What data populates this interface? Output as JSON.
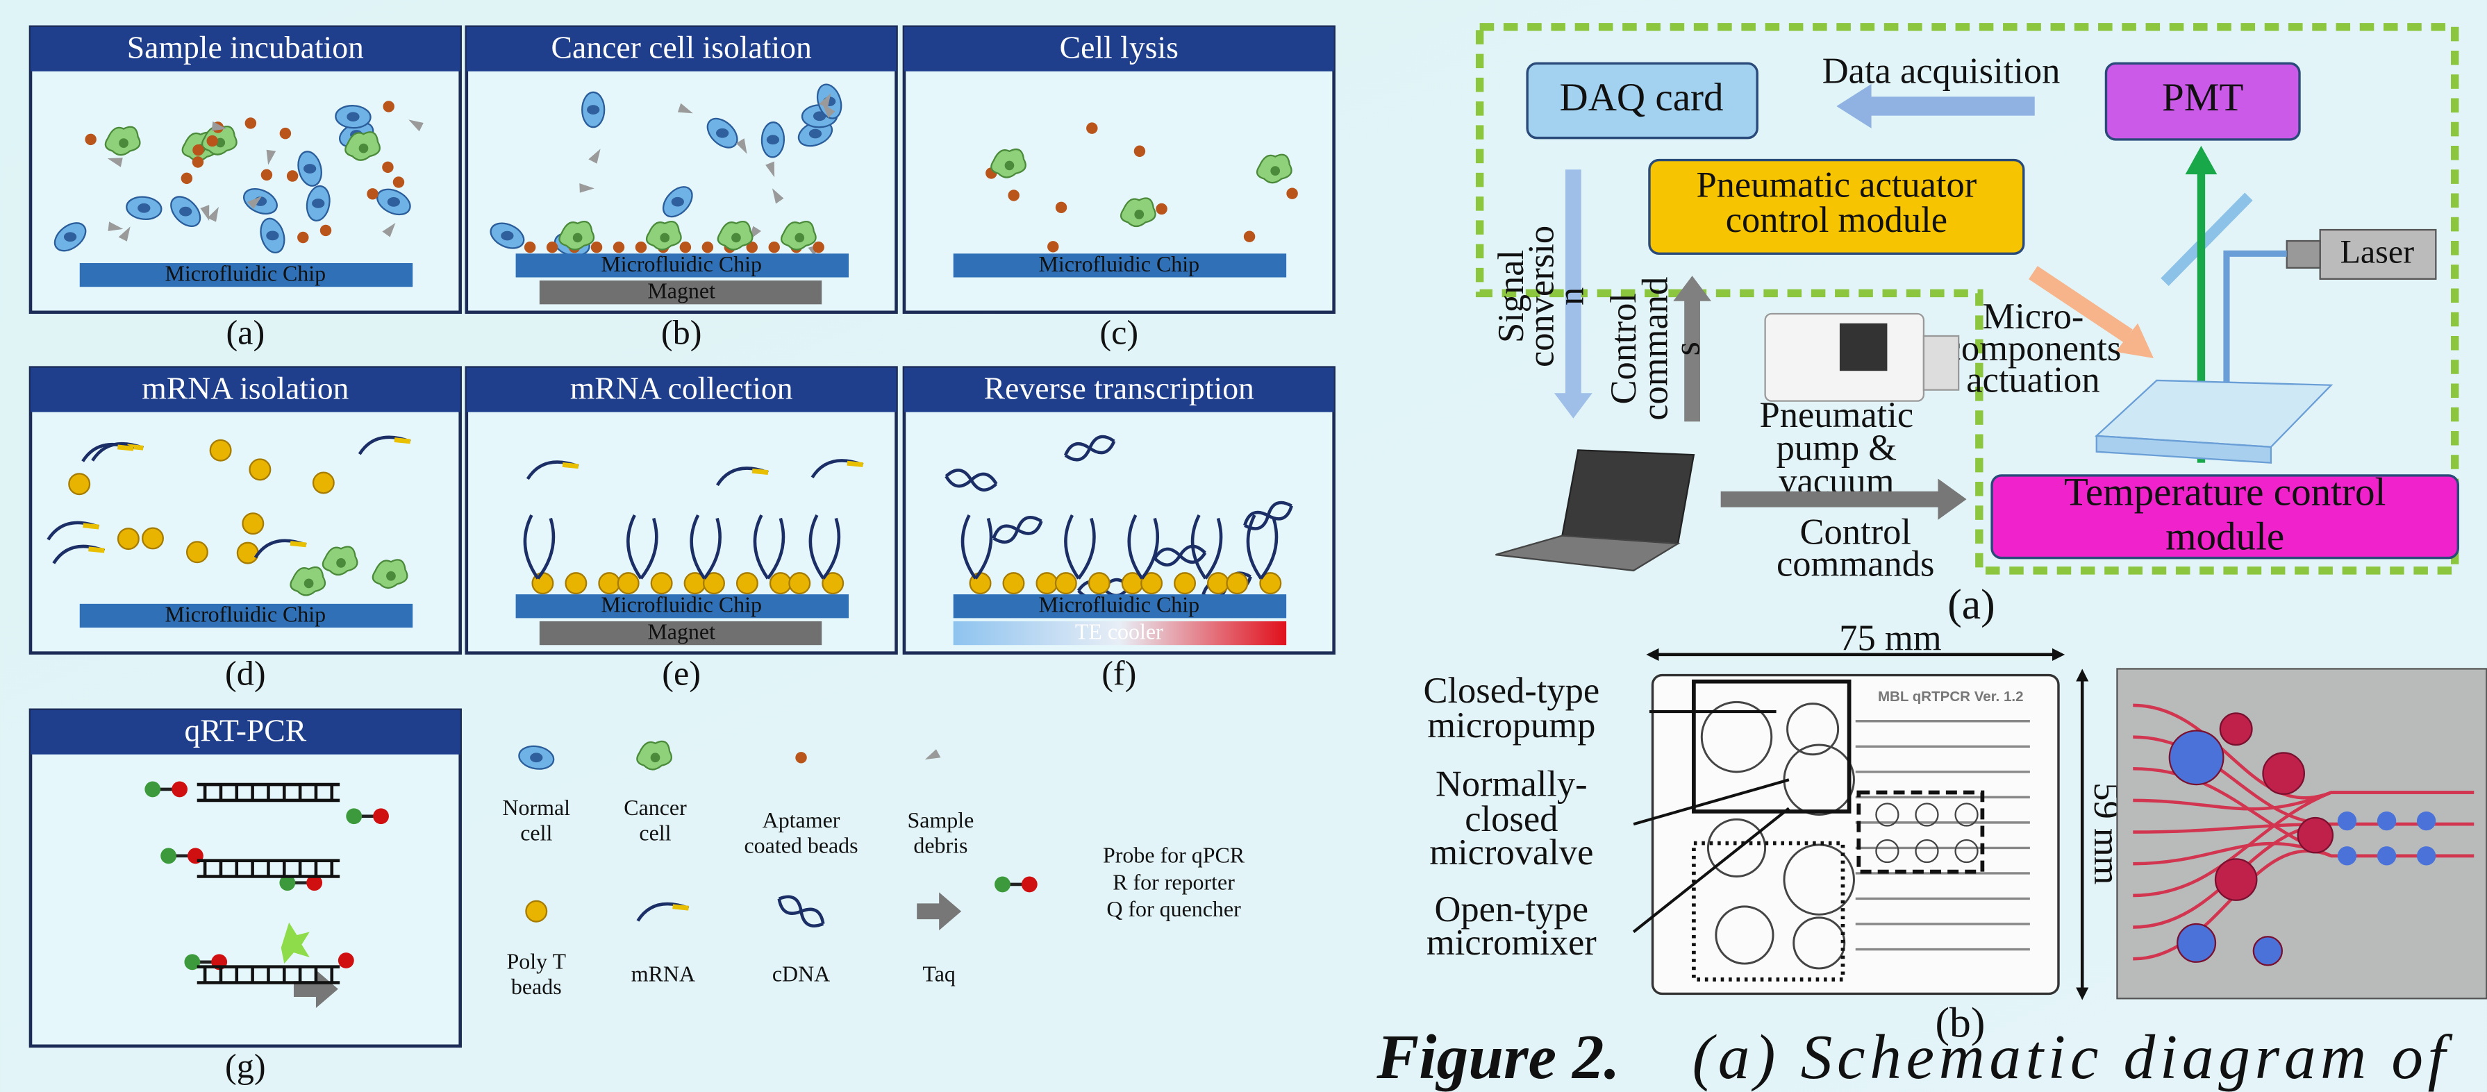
{
  "panels": [
    {
      "title": "Sample incubation",
      "chip": "Microfluidic Chip",
      "label": "(a)"
    },
    {
      "title": "Cancer cell isolation",
      "chip": "Microfluidic Chip",
      "base": "Magnet",
      "label": "(b)"
    },
    {
      "title": "Cell lysis",
      "chip": "Microfluidic Chip",
      "label": "(c)"
    },
    {
      "title": "mRNA isolation",
      "chip": "Microfluidic Chip",
      "label": "(d)"
    },
    {
      "title": "mRNA collection",
      "chip": "Microfluidic Chip",
      "base": "Magnet",
      "label": "(e)"
    },
    {
      "title": "Reverse transcription",
      "chip": "Microfluidic Chip",
      "base": "TE cooler",
      "label": "(f)"
    },
    {
      "title": "qRT-PCR",
      "label": "(g)"
    }
  ],
  "legend": [
    {
      "lines": [
        "Normal",
        "cell"
      ]
    },
    {
      "lines": [
        "Cancer",
        "cell"
      ]
    },
    {
      "lines": [
        "Aptamer",
        "coated beads"
      ]
    },
    {
      "lines": [
        "Sample",
        "debris"
      ]
    },
    {
      "lines": [
        "Poly T",
        "beads"
      ]
    },
    {
      "lines": [
        "mRNA"
      ]
    },
    {
      "lines": [
        "cDNA"
      ]
    },
    {
      "lines": [
        "Taq"
      ]
    }
  ],
  "probe_note": [
    "Probe for qPCR",
    "R for reporter",
    "Q for quencher"
  ],
  "system": {
    "daq": "DAQ card",
    "data_acquisition": "Data acquisition",
    "pmt": "PMT",
    "actuator": [
      "Pneumatic actuator",
      "control module"
    ],
    "laser": "Laser",
    "signal": [
      "Signal",
      "conversio",
      "n"
    ],
    "control_vertical": [
      "Control",
      "command",
      "s"
    ],
    "micro": [
      "Micro-",
      "components",
      "actuation"
    ],
    "pump": [
      "Pneumatic",
      "pump &",
      "vacuum"
    ],
    "control_commands": [
      "Control",
      "commands"
    ],
    "temperature": [
      "Temperature control",
      "module"
    ],
    "label": "(a)"
  },
  "chip": {
    "width": "75 mm",
    "height": "59 mm",
    "version": "MBL qRTPCR Ver. 1.2",
    "callouts": [
      [
        "Closed-type",
        "micropump"
      ],
      [
        "Normally-",
        "closed",
        "microvalve"
      ],
      [
        "Open-type",
        "micromixer"
      ]
    ],
    "label": "(b)"
  },
  "caption": {
    "label": "Figure 2.",
    "text": "(a) Schematic diagram of"
  }
}
